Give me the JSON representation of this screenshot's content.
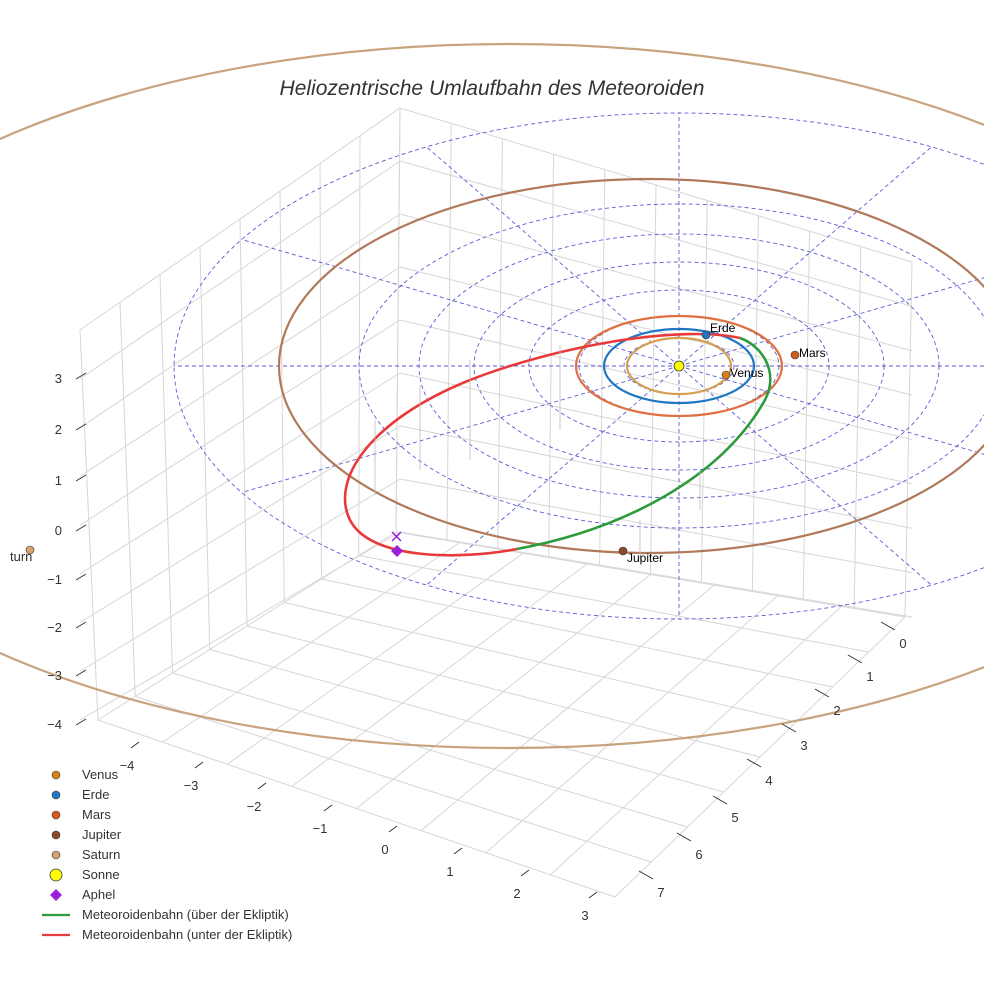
{
  "chart_data": {
    "type": "scatter3d",
    "title": "Heliozentrische Umlaufbahn des Meteoroiden",
    "axes": {
      "x": {
        "ticks": [
          "−4",
          "−3",
          "−2",
          "−1",
          "0",
          "1",
          "2",
          "3"
        ]
      },
      "y": {
        "ticks": [
          "0",
          "1",
          "2",
          "3",
          "4",
          "5",
          "6",
          "7"
        ]
      },
      "z": {
        "ticks": [
          "3",
          "2",
          "1",
          "0",
          "−1",
          "−2",
          "−3",
          "−4"
        ]
      }
    },
    "bodies": [
      {
        "name": "Venus",
        "label": "Venus",
        "color": "#d4821a"
      },
      {
        "name": "Erde",
        "label": "Erde",
        "color": "#1f77c4"
      },
      {
        "name": "Mars",
        "label": "Mars",
        "color": "#d45a1a"
      },
      {
        "name": "Jupiter",
        "label": "Jupiter",
        "color": "#8b4a2b"
      },
      {
        "name": "Saturn",
        "label": "",
        "color": "#d4a373"
      }
    ],
    "orbits": [
      {
        "name": "Venus",
        "color": "#d4a050"
      },
      {
        "name": "Erde",
        "color": "#1f77c4"
      },
      {
        "name": "Mars",
        "color": "#e07040"
      },
      {
        "name": "Jupiter",
        "color": "#b07a5a"
      },
      {
        "name": "Saturn",
        "color": "#c8a47e"
      }
    ],
    "sun": {
      "name": "Sonne",
      "color": "#ffff00"
    },
    "aphel": {
      "name": "Aphel",
      "color": "#9b1fd8"
    },
    "meteoroid": {
      "above": {
        "name": "Meteoroidenbahn (über der Ekliptik)",
        "color": "#2e9b3a"
      },
      "below": {
        "name": "Meteoroidenbahn (unter der Ekliptik)",
        "color": "#e83a3a"
      }
    },
    "partial_label": "turn",
    "legend": {
      "placement": "bottom-left",
      "entries": [
        {
          "label": "Venus",
          "symbol": "dot",
          "color": "#d4821a"
        },
        {
          "label": "Erde",
          "symbol": "dot",
          "color": "#1f77c4"
        },
        {
          "label": "Mars",
          "symbol": "dot",
          "color": "#d45a1a"
        },
        {
          "label": "Jupiter",
          "symbol": "dot",
          "color": "#8b4a2b"
        },
        {
          "label": "Saturn",
          "symbol": "dot",
          "color": "#d4a373"
        },
        {
          "label": "Sonne",
          "symbol": "bigdot",
          "color": "#ffff00"
        },
        {
          "label": "Aphel",
          "symbol": "diamond",
          "color": "#9b1fd8"
        },
        {
          "label": "Meteoroidenbahn (über der Ekliptik)",
          "symbol": "line",
          "color": "#2e9b3a"
        },
        {
          "label": "Meteoroidenbahn (unter der Ekliptik)",
          "symbol": "line",
          "color": "#e83a3a"
        }
      ]
    }
  }
}
